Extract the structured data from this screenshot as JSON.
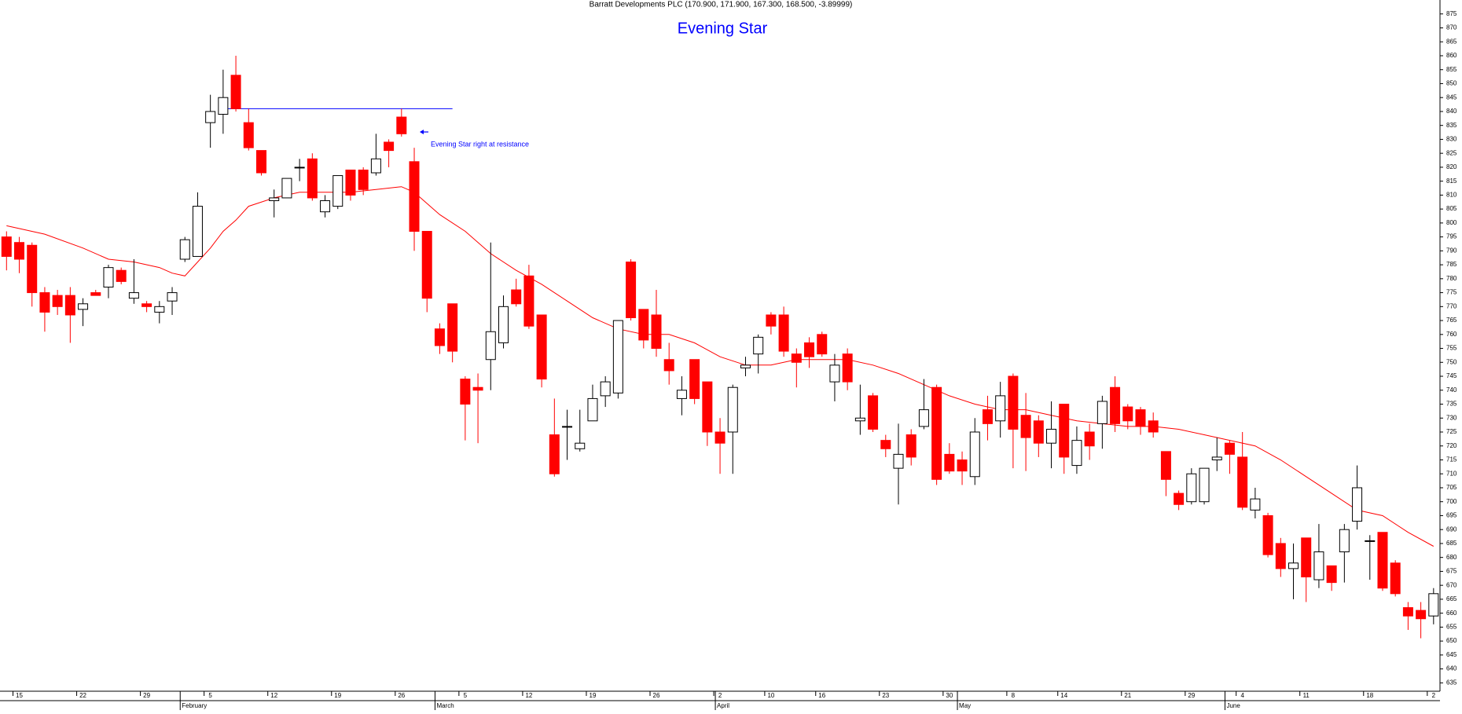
{
  "chart_data": {
    "type": "candlestick",
    "title": "Barratt Developments PLC (170.900, 171.900, 167.300, 168.500, -3.89999)",
    "subtitle": "Evening Star",
    "annotation": "Evening Star right at resistance",
    "up_color": "#ffffff",
    "down_color": "#ff0000",
    "ma_color": "#ff0000",
    "resistance_color": "#0000ff",
    "ylim": [
      632,
      880
    ],
    "yticks": [
      635,
      640,
      645,
      650,
      655,
      660,
      665,
      670,
      675,
      680,
      685,
      690,
      695,
      700,
      705,
      710,
      715,
      720,
      725,
      730,
      735,
      740,
      745,
      750,
      755,
      760,
      765,
      770,
      775,
      780,
      785,
      790,
      795,
      800,
      805,
      810,
      815,
      820,
      825,
      830,
      835,
      840,
      845,
      850,
      855,
      860,
      865,
      870,
      875
    ],
    "categories": [
      null,
      "15",
      null,
      null,
      null,
      null,
      "22",
      null,
      null,
      null,
      null,
      "29",
      null,
      null,
      null,
      null,
      "5",
      null,
      null,
      null,
      null,
      "12",
      null,
      null,
      null,
      null,
      "19",
      null,
      null,
      null,
      null,
      "26",
      null,
      null,
      null,
      null,
      "5",
      null,
      null,
      null,
      null,
      "12",
      null,
      null,
      null,
      null,
      "19",
      null,
      null,
      null,
      null,
      "26",
      null,
      null,
      null,
      null,
      "2",
      null,
      null,
      null,
      "10",
      null,
      null,
      null,
      "16",
      null,
      null,
      null,
      null,
      "23",
      null,
      null,
      null,
      null,
      "30",
      null,
      null,
      null,
      null,
      "8",
      null,
      null,
      null,
      "14",
      null,
      null,
      null,
      null,
      "21",
      null,
      null,
      null,
      null,
      "29",
      null,
      null,
      null,
      "4",
      null,
      null,
      null,
      null,
      "11",
      null,
      null,
      null,
      null,
      "18",
      null,
      null,
      null,
      null,
      "2"
    ],
    "months": {
      "labels": [
        "February",
        "March",
        "April",
        "May",
        "June"
      ],
      "index": [
        14,
        34,
        56,
        75,
        96
      ]
    },
    "open": [
      795,
      793,
      792,
      775,
      774,
      774,
      769,
      775,
      777,
      783,
      773,
      771,
      768,
      772,
      787,
      788,
      836,
      839,
      853,
      836,
      826,
      808,
      809,
      820,
      823,
      804,
      806,
      819,
      819,
      818,
      829,
      838,
      822,
      797,
      762,
      771,
      744,
      741,
      751,
      757,
      776,
      781,
      767,
      724,
      727,
      719,
      729,
      738,
      739,
      786,
      769,
      767,
      751,
      737,
      751,
      743,
      725,
      725,
      748,
      753,
      767,
      767,
      753,
      757,
      760,
      743,
      753,
      729,
      738,
      722,
      712,
      724,
      727,
      741,
      717,
      715,
      709,
      733,
      729,
      745,
      731,
      729,
      721,
      735,
      713,
      725,
      728,
      741,
      734,
      733,
      729,
      718,
      703,
      700,
      700,
      715,
      721,
      716,
      697,
      695,
      685,
      676,
      687,
      672,
      677,
      682,
      693,
      686,
      689,
      678,
      662,
      661,
      659
    ],
    "high": [
      797,
      795,
      793,
      777,
      776,
      777,
      773,
      776,
      785,
      784,
      787,
      772,
      772,
      777,
      795,
      811,
      846,
      855,
      860,
      841,
      826,
      812,
      816,
      823,
      825,
      810,
      817,
      819,
      820,
      832,
      830,
      841,
      827,
      797,
      764,
      771,
      745,
      746,
      793,
      774,
      780,
      785,
      767,
      737,
      733,
      733,
      742,
      745,
      765,
      787,
      769,
      776,
      757,
      745,
      751,
      743,
      730,
      742,
      752,
      760,
      768,
      770,
      755,
      759,
      761,
      753,
      755,
      742,
      739,
      724,
      728,
      726,
      744,
      742,
      721,
      718,
      730,
      738,
      743,
      746,
      739,
      731,
      736,
      735,
      727,
      728,
      738,
      745,
      735,
      734,
      732,
      718,
      704,
      712,
      712,
      723,
      722,
      725,
      705,
      696,
      687,
      685,
      687,
      692,
      677,
      692,
      713,
      688,
      689,
      679,
      664,
      664,
      669
    ],
    "low": [
      783,
      782,
      770,
      761,
      767,
      757,
      763,
      774,
      773,
      778,
      771,
      768,
      764,
      767,
      786,
      788,
      827,
      832,
      840,
      826,
      817,
      802,
      809,
      815,
      808,
      802,
      805,
      808,
      810,
      817,
      820,
      831,
      790,
      768,
      753,
      750,
      722,
      721,
      740,
      755,
      770,
      762,
      741,
      709,
      715,
      718,
      730,
      734,
      737,
      765,
      755,
      752,
      742,
      731,
      735,
      720,
      710,
      710,
      745,
      746,
      760,
      752,
      741,
      748,
      752,
      736,
      740,
      724,
      725,
      716,
      699,
      713,
      726,
      706,
      710,
      706,
      706,
      722,
      723,
      712,
      711,
      716,
      712,
      710,
      710,
      715,
      719,
      725,
      726,
      724,
      723,
      702,
      697,
      699,
      699,
      711,
      710,
      697,
      694,
      680,
      673,
      665,
      664,
      669,
      668,
      671,
      690,
      672,
      668,
      666,
      654,
      651,
      656
    ],
    "close": [
      788,
      787,
      775,
      768,
      770,
      767,
      771,
      774,
      784,
      779,
      775,
      770,
      770,
      775,
      794,
      806,
      840,
      845,
      841,
      827,
      818,
      809,
      816,
      820,
      809,
      808,
      817,
      810,
      812,
      823,
      826,
      832,
      797,
      773,
      756,
      754,
      735,
      740,
      761,
      770,
      771,
      763,
      744,
      710,
      727,
      721,
      737,
      743,
      765,
      766,
      758,
      755,
      747,
      740,
      737,
      725,
      721,
      741,
      749,
      759,
      763,
      754,
      750,
      752,
      753,
      749,
      743,
      730,
      726,
      719,
      717,
      716,
      733,
      708,
      711,
      711,
      725,
      728,
      738,
      726,
      723,
      721,
      726,
      716,
      722,
      720,
      736,
      728,
      729,
      727,
      725,
      708,
      699,
      710,
      712,
      716,
      717,
      698,
      701,
      681,
      676,
      678,
      673,
      682,
      671,
      690,
      705,
      686,
      669,
      667,
      659,
      658,
      667
    ],
    "ma": {
      "x": [
        0,
        3,
        6,
        8,
        10,
        12,
        13,
        14,
        15,
        16,
        17,
        18,
        19,
        21,
        23,
        25,
        27,
        29,
        31,
        32,
        34,
        36,
        38,
        40,
        42,
        44,
        46,
        48,
        50,
        52,
        54,
        56,
        58,
        60,
        62,
        64,
        66,
        68,
        70,
        72,
        74,
        76,
        78,
        80,
        82,
        84,
        86,
        88,
        90,
        92,
        94,
        96,
        98,
        100,
        102,
        104,
        106,
        108,
        110,
        112
      ],
      "values": [
        799,
        796,
        791,
        787,
        786,
        784,
        782,
        781,
        786,
        791,
        797,
        801,
        806,
        809,
        811,
        811,
        811,
        812,
        813,
        811,
        803,
        797,
        789,
        783,
        778,
        772,
        766,
        762,
        760,
        760,
        757,
        752,
        749,
        749,
        751,
        751,
        751,
        749,
        746,
        742,
        738,
        735,
        733,
        733,
        731,
        729,
        728,
        727,
        727,
        726,
        724,
        722,
        720,
        715,
        709,
        703,
        697,
        695,
        689,
        684
      ]
    },
    "resistance": {
      "value": 841,
      "x": [
        17,
        35
      ]
    }
  }
}
